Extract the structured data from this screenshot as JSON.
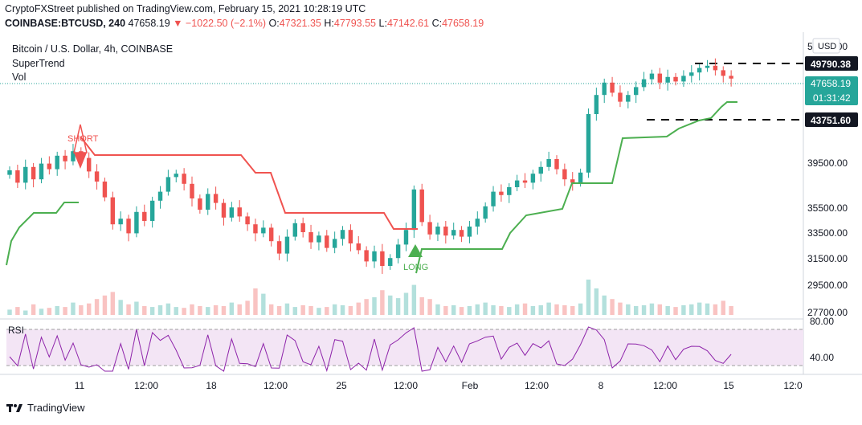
{
  "header": {
    "publisher": "CryptoFXStreet published on TradingView.com, February 15, 2021 10:28:19 UTC",
    "symbol": "COINBASE:BTCUSD, 240",
    "last": "47658.19",
    "change": "▼ −1022.50 (−2.1%)",
    "o_label": "O:",
    "o_value": "47321.35",
    "h_label": "H:",
    "h_value": "47793.55",
    "l_label": "L:",
    "l_value": "47142.61",
    "c_label": "C:",
    "c_value": "47658.19"
  },
  "legend": {
    "title": "Bitcoin / U.S. Dollar, 4h, COINBASE",
    "indicator1": "SuperTrend",
    "indicator2": "Vol",
    "rsi_label": "RSI"
  },
  "colors": {
    "up": "#26a69a",
    "down": "#ef5350",
    "supertrend_up": "#4caf50",
    "supertrend_down": "#f05350",
    "rsi_line": "#8e24aa",
    "rsi_band": "#f3e5f5",
    "last_price_bg": "#26a69a"
  },
  "chart_data": {
    "type": "candlestick",
    "price_axis_ticks": [
      "51000.00",
      "39500.00",
      "35500.00",
      "33500.00",
      "31500.00",
      "29500.00",
      "27700.00"
    ],
    "currency": "USD",
    "time_axis_ticks": [
      "11",
      "12:00",
      "18",
      "12:00",
      "25",
      "12:00",
      "Feb",
      "12:00",
      "8",
      "12:00",
      "15",
      "12:0"
    ],
    "price_labels": {
      "resistance": "49790.38",
      "last": "47658.19",
      "countdown": "01:31:42",
      "support": "43751.60"
    },
    "annotations": [
      "SHORT",
      "LONG"
    ],
    "rsi_ticks": [
      "80.00",
      "40.00"
    ],
    "close_series": [
      39500,
      38400,
      39800,
      38700,
      40100,
      39600,
      40800,
      40300,
      41200,
      40600,
      39400,
      38500,
      37100,
      34700,
      35200,
      33900,
      35800,
      35000,
      36800,
      37600,
      38900,
      39200,
      38300,
      37000,
      36000,
      37400,
      36600,
      35300,
      36200,
      35400,
      34700,
      33900,
      34400,
      33200,
      32100,
      33600,
      34800,
      34000,
      33100,
      33700,
      32600,
      33400,
      34200,
      33000,
      32400,
      31400,
      32300,
      31000,
      31700,
      32900,
      34200,
      37800,
      34900,
      33800,
      34500,
      33700,
      34200,
      33600,
      34500,
      35200,
      36300,
      37600,
      37300,
      38000,
      38600,
      38400,
      39200,
      39800,
      40500,
      39600,
      38700,
      38400,
      39300,
      44500,
      46200,
      47300,
      46400,
      45600,
      46200,
      46900,
      47600,
      48100,
      47300,
      47800,
      47400,
      47900,
      48200,
      48600,
      48800,
      48400,
      47900,
      47658
    ],
    "supertrend_down": [
      {
        "from": 14,
        "to": 48,
        "value": 40000,
        "steps": [
          [
            14,
            40100
          ],
          [
            30,
            39500
          ],
          [
            38,
            36700
          ],
          [
            48,
            34500
          ]
        ]
      }
    ],
    "supertrend_up": [
      {
        "from": 0,
        "to": 14,
        "value": 33000
      },
      {
        "from": 49,
        "to": 91,
        "value": 32500
      }
    ],
    "rsi_range": [
      20,
      90
    ]
  },
  "footer": {
    "brand": "TradingView"
  }
}
